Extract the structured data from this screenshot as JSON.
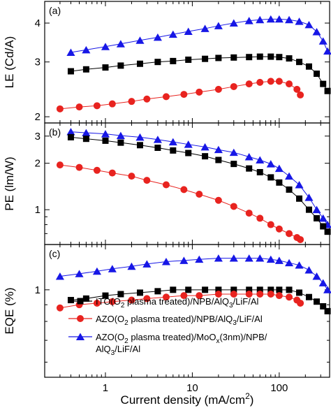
{
  "chart_data": {
    "type": "scatter",
    "x_scale": "log",
    "xlabel_main": "Current density (mA/cm",
    "xlabel_sup": "2",
    "xlabel_end": ")",
    "x_ticks": [
      {
        "value": 1,
        "label": "1"
      },
      {
        "value": 10,
        "label": "10"
      },
      {
        "value": 100,
        "label": "100"
      }
    ],
    "xlim": [
      0.2,
      380
    ],
    "colors": {
      "ito": "#000000",
      "azo": "#e8231f",
      "moox": "#1717e6"
    },
    "legend": {
      "placement": "panel-c-lower",
      "entries": [
        {
          "series": "ito",
          "marker": "square",
          "parts": [
            {
              "t": "ITO(O",
              "s": "n"
            },
            {
              "t": "2",
              "s": "sub"
            },
            {
              "t": " plasma treated)/NPB/AlQ",
              "s": "n"
            },
            {
              "t": "3",
              "s": "sub"
            },
            {
              "t": "/LiF/Al",
              "s": "n"
            }
          ]
        },
        {
          "series": "azo",
          "marker": "circle",
          "parts": [
            {
              "t": "AZO(O",
              "s": "n"
            },
            {
              "t": "2",
              "s": "sub"
            },
            {
              "t": " plasma treated)/NPB/AlQ",
              "s": "n"
            },
            {
              "t": "3",
              "s": "sub"
            },
            {
              "t": "/LiF/Al",
              "s": "n"
            }
          ]
        },
        {
          "series": "moox",
          "marker": "triangle",
          "parts": [
            {
              "t": "AZO(O",
              "s": "n"
            },
            {
              "t": "2",
              "s": "sub"
            },
            {
              "t": " plasma treated)/MoO",
              "s": "n"
            },
            {
              "t": "x",
              "s": "sub"
            },
            {
              "t": "(3nm)/NPB/",
              "s": "n"
            }
          ],
          "line2": [
            {
              "t": "AlQ",
              "s": "n"
            },
            {
              "t": "3",
              "s": "sub"
            },
            {
              "t": "/LiF/Al",
              "s": "n"
            }
          ]
        }
      ]
    },
    "panels": [
      {
        "label": "(a)",
        "ylabel": "LE (Cd/A)",
        "y_scale": "log",
        "ylim": [
          1.95,
          4.6
        ],
        "y_ticks": [
          {
            "value": 2,
            "label": "2"
          },
          {
            "value": 3,
            "label": "3"
          },
          {
            "value": 4,
            "label": "4"
          }
        ],
        "series": [
          {
            "key": "moox",
            "marker": "triangle",
            "points": [
              [
                0.4,
                3.22
              ],
              [
                0.6,
                3.28
              ],
              [
                1,
                3.36
              ],
              [
                1.5,
                3.43
              ],
              [
                2.5,
                3.52
              ],
              [
                4,
                3.6
              ],
              [
                6,
                3.68
              ],
              [
                9,
                3.76
              ],
              [
                14,
                3.84
              ],
              [
                20,
                3.92
              ],
              [
                30,
                4.0
              ],
              [
                45,
                4.07
              ],
              [
                60,
                4.1
              ],
              [
                80,
                4.12
              ],
              [
                100,
                4.12
              ],
              [
                130,
                4.1
              ],
              [
                170,
                4.05
              ],
              [
                220,
                3.95
              ],
              [
                270,
                3.75
              ],
              [
                320,
                3.5
              ],
              [
                360,
                3.25
              ]
            ]
          },
          {
            "key": "ito",
            "marker": "square",
            "points": [
              [
                0.4,
                2.8
              ],
              [
                0.6,
                2.84
              ],
              [
                1,
                2.88
              ],
              [
                1.5,
                2.92
              ],
              [
                2.5,
                2.96
              ],
              [
                4,
                3.0
              ],
              [
                6,
                3.02
              ],
              [
                9,
                3.05
              ],
              [
                14,
                3.07
              ],
              [
                20,
                3.09
              ],
              [
                30,
                3.1
              ],
              [
                45,
                3.11
              ],
              [
                60,
                3.12
              ],
              [
                80,
                3.12
              ],
              [
                100,
                3.11
              ],
              [
                130,
                3.08
              ],
              [
                170,
                3.0
              ],
              [
                220,
                2.9
              ],
              [
                270,
                2.75
              ],
              [
                320,
                2.55
              ],
              [
                360,
                2.42
              ]
            ]
          },
          {
            "key": "azo",
            "marker": "circle",
            "points": [
              [
                0.3,
                2.12
              ],
              [
                0.5,
                2.15
              ],
              [
                0.8,
                2.17
              ],
              [
                1.2,
                2.2
              ],
              [
                2,
                2.24
              ],
              [
                3,
                2.28
              ],
              [
                5,
                2.32
              ],
              [
                8,
                2.36
              ],
              [
                12,
                2.4
              ],
              [
                20,
                2.45
              ],
              [
                30,
                2.5
              ],
              [
                45,
                2.55
              ],
              [
                60,
                2.58
              ],
              [
                80,
                2.6
              ],
              [
                100,
                2.6
              ],
              [
                130,
                2.55
              ],
              [
                160,
                2.45
              ],
              [
                175,
                2.35
              ]
            ]
          }
        ]
      },
      {
        "label": "(b)",
        "ylabel": "PE (lm/W)",
        "y_scale": "log",
        "ylim": [
          0.62,
          3.5
        ],
        "y_ticks": [
          {
            "value": 1,
            "label": "1"
          },
          {
            "value": 2,
            "label": "2"
          },
          {
            "value": 3,
            "label": "3"
          }
        ],
        "series": [
          {
            "key": "moox",
            "marker": "triangle",
            "points": [
              [
                0.4,
                3.2
              ],
              [
                0.6,
                3.15
              ],
              [
                1,
                3.1
              ],
              [
                1.5,
                3.02
              ],
              [
                2.5,
                2.95
              ],
              [
                4,
                2.85
              ],
              [
                6,
                2.75
              ],
              [
                9,
                2.65
              ],
              [
                14,
                2.55
              ],
              [
                20,
                2.45
              ],
              [
                30,
                2.35
              ],
              [
                45,
                2.2
              ],
              [
                60,
                2.1
              ],
              [
                80,
                1.98
              ],
              [
                100,
                1.85
              ],
              [
                130,
                1.65
              ],
              [
                170,
                1.45
              ],
              [
                220,
                1.2
              ],
              [
                270,
                1.0
              ],
              [
                320,
                0.88
              ],
              [
                360,
                0.8
              ]
            ]
          },
          {
            "key": "ito",
            "marker": "square",
            "points": [
              [
                0.4,
                2.95
              ],
              [
                0.6,
                2.88
              ],
              [
                1,
                2.8
              ],
              [
                1.5,
                2.72
              ],
              [
                2.5,
                2.62
              ],
              [
                4,
                2.52
              ],
              [
                6,
                2.42
              ],
              [
                9,
                2.33
              ],
              [
                14,
                2.22
              ],
              [
                20,
                2.1
              ],
              [
                30,
                1.98
              ],
              [
                45,
                1.85
              ],
              [
                60,
                1.75
              ],
              [
                80,
                1.62
              ],
              [
                100,
                1.5
              ],
              [
                130,
                1.35
              ],
              [
                170,
                1.18
              ],
              [
                220,
                1.0
              ],
              [
                270,
                0.88
              ],
              [
                320,
                0.78
              ],
              [
                360,
                0.72
              ]
            ]
          },
          {
            "key": "azo",
            "marker": "circle",
            "points": [
              [
                0.3,
                1.95
              ],
              [
                0.5,
                1.88
              ],
              [
                0.8,
                1.8
              ],
              [
                1.2,
                1.73
              ],
              [
                2,
                1.65
              ],
              [
                3,
                1.55
              ],
              [
                5,
                1.45
              ],
              [
                8,
                1.35
              ],
              [
                12,
                1.26
              ],
              [
                20,
                1.15
              ],
              [
                30,
                1.05
              ],
              [
                45,
                0.95
              ],
              [
                60,
                0.88
              ],
              [
                80,
                0.8
              ],
              [
                100,
                0.75
              ],
              [
                130,
                0.7
              ],
              [
                160,
                0.66
              ],
              [
                175,
                0.64
              ]
            ]
          }
        ]
      },
      {
        "label": "(c)",
        "ylabel": "EQE (%)",
        "y_scale": "log",
        "ylim": [
          0.55,
          1.35
        ],
        "y_ticks": [
          {
            "value": 1,
            "label": "1"
          }
        ],
        "series": [
          {
            "key": "moox",
            "marker": "triangle",
            "points": [
              [
                0.3,
                1.1
              ],
              [
                0.5,
                1.12
              ],
              [
                0.8,
                1.14
              ],
              [
                1.2,
                1.16
              ],
              [
                2,
                1.18
              ],
              [
                3,
                1.2
              ],
              [
                5,
                1.22
              ],
              [
                8,
                1.23
              ],
              [
                12,
                1.24
              ],
              [
                20,
                1.25
              ],
              [
                30,
                1.25
              ],
              [
                45,
                1.25
              ],
              [
                60,
                1.25
              ],
              [
                80,
                1.24
              ],
              [
                100,
                1.23
              ],
              [
                130,
                1.21
              ],
              [
                170,
                1.19
              ],
              [
                220,
                1.15
              ],
              [
                270,
                1.1
              ],
              [
                320,
                1.05
              ],
              [
                360,
                1.0
              ]
            ]
          },
          {
            "key": "ito",
            "marker": "square",
            "points": [
              [
                0.4,
                0.93
              ],
              [
                0.6,
                0.94
              ],
              [
                1,
                0.96
              ],
              [
                1.5,
                0.97
              ],
              [
                2.5,
                0.98
              ],
              [
                4,
                0.99
              ],
              [
                6,
                1.0
              ],
              [
                9,
                1.0
              ],
              [
                14,
                1.0
              ],
              [
                20,
                1.0
              ],
              [
                30,
                1.0
              ],
              [
                45,
                1.0
              ],
              [
                60,
                1.0
              ],
              [
                80,
                1.0
              ],
              [
                100,
                1.0
              ],
              [
                130,
                1.0
              ],
              [
                170,
                0.98
              ],
              [
                220,
                0.95
              ],
              [
                270,
                0.92
              ],
              [
                320,
                0.89
              ],
              [
                360,
                0.86
              ]
            ]
          },
          {
            "key": "azo",
            "marker": "circle",
            "points": [
              [
                0.3,
                0.88
              ],
              [
                0.5,
                0.9
              ],
              [
                0.8,
                0.91
              ],
              [
                1.2,
                0.92
              ],
              [
                2,
                0.93
              ],
              [
                3,
                0.94
              ],
              [
                5,
                0.95
              ],
              [
                8,
                0.96
              ],
              [
                12,
                0.96
              ],
              [
                20,
                0.97
              ],
              [
                30,
                0.97
              ],
              [
                45,
                0.97
              ],
              [
                60,
                0.97
              ],
              [
                80,
                0.97
              ],
              [
                100,
                0.96
              ],
              [
                130,
                0.95
              ],
              [
                160,
                0.93
              ],
              [
                175,
                0.91
              ]
            ]
          }
        ]
      }
    ]
  }
}
